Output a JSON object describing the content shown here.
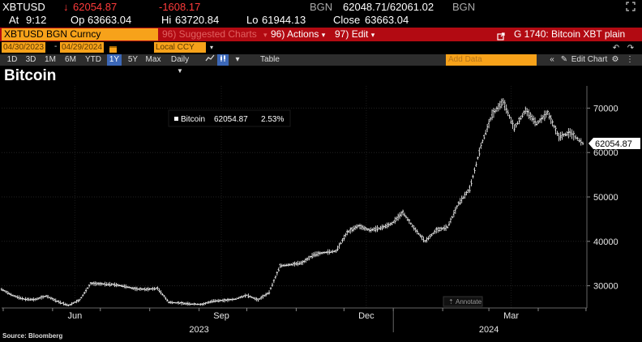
{
  "quote": {
    "ticker": "XBTUSD",
    "arrow": "↓",
    "last": "62054.87",
    "change": "-1608.17",
    "source1": "BGN",
    "bid_ask": "62048.71/62061.02",
    "source2": "BGN",
    "at_label": "At",
    "at_time": "9:12",
    "op_label": "Op",
    "open": "63663.04",
    "hi_label": "Hi",
    "high": "63720.84",
    "lo_label": "Lo",
    "low": "61944.13",
    "close_label": "Close",
    "close": "63663.04"
  },
  "command_bar": {
    "security": "XBTUSD BGN Curncy",
    "suggested": "96) Suggested Charts",
    "actions": "Actions",
    "actions_num": "96)",
    "edit": "Edit",
    "edit_num": "97)",
    "page_title": "G 1740: Bitcoin XBT plain"
  },
  "range": {
    "start": "04/30/2023",
    "end": "04/29/2024",
    "currency": "Local CCY"
  },
  "toolbar": {
    "periods": [
      "1D",
      "3D",
      "1M",
      "6M",
      "YTD",
      "1Y",
      "5Y",
      "Max"
    ],
    "active_period": "1Y",
    "frequency": "Daily",
    "table_label": "Table",
    "add_data_placeholder": "Add Data",
    "edit_chart": "Edit Chart"
  },
  "chart_title": "Bitcoin",
  "legend": {
    "name": "Bitcoin",
    "value": "62054.87",
    "pct": "2.53%"
  },
  "annotate_label": "Annotate",
  "last_price_tag": "62054.87",
  "footer": "Source: Bloomberg",
  "colors": {
    "accent": "#f7a21a",
    "bar": "#b20a12",
    "down": "#ff3b3b",
    "active_tab": "#3c68b8"
  },
  "chart_data": {
    "type": "line",
    "title": "Bitcoin",
    "y_ticks": [
      30000,
      40000,
      50000,
      60000,
      70000
    ],
    "ylim": [
      25000,
      75000
    ],
    "x_ticks": [
      "Jun",
      "Sep",
      "Dec",
      "Mar"
    ],
    "x_years": [
      "2023",
      "2024"
    ],
    "grid": true,
    "series": [
      {
        "name": "Bitcoin",
        "x": [
          "2023-04-30",
          "2023-05-07",
          "2023-05-14",
          "2023-05-21",
          "2023-05-28",
          "2023-06-04",
          "2023-06-11",
          "2023-06-18",
          "2023-06-25",
          "2023-07-02",
          "2023-07-09",
          "2023-07-16",
          "2023-07-23",
          "2023-07-30",
          "2023-08-06",
          "2023-08-13",
          "2023-08-20",
          "2023-08-27",
          "2023-09-03",
          "2023-09-10",
          "2023-09-17",
          "2023-09-24",
          "2023-10-01",
          "2023-10-08",
          "2023-10-15",
          "2023-10-22",
          "2023-10-29",
          "2023-11-05",
          "2023-11-12",
          "2023-11-19",
          "2023-11-26",
          "2023-12-03",
          "2023-12-10",
          "2023-12-17",
          "2023-12-24",
          "2023-12-31",
          "2024-01-07",
          "2024-01-14",
          "2024-01-21",
          "2024-01-28",
          "2024-02-04",
          "2024-02-11",
          "2024-02-18",
          "2024-02-25",
          "2024-03-03",
          "2024-03-10",
          "2024-03-17",
          "2024-03-24",
          "2024-03-31",
          "2024-04-07",
          "2024-04-14",
          "2024-04-21",
          "2024-04-29"
        ],
        "values": [
          29200,
          27800,
          27000,
          26900,
          27700,
          26500,
          25600,
          26800,
          30500,
          30400,
          30300,
          29900,
          29300,
          29200,
          29400,
          26300,
          26100,
          25900,
          25800,
          26600,
          26700,
          27000,
          27900,
          26800,
          28500,
          34500,
          34800,
          35200,
          37000,
          37500,
          37800,
          42000,
          43500,
          42500,
          43000,
          44000,
          46500,
          43000,
          40000,
          42500,
          43200,
          48500,
          51800,
          61500,
          68500,
          71500,
          65500,
          69500,
          66500,
          69000,
          63500,
          64500,
          62054.87
        ]
      }
    ]
  }
}
